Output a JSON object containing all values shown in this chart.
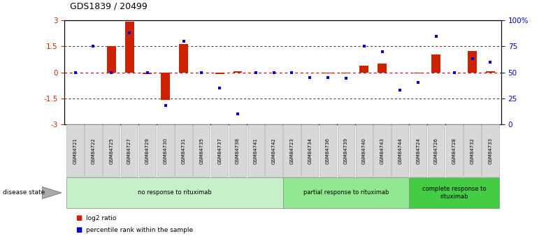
{
  "title": "GDS1839 / 20499",
  "samples": [
    "GSM84721",
    "GSM84722",
    "GSM84725",
    "GSM84727",
    "GSM84729",
    "GSM84730",
    "GSM84731",
    "GSM84735",
    "GSM84737",
    "GSM84738",
    "GSM84741",
    "GSM84742",
    "GSM84723",
    "GSM84734",
    "GSM84736",
    "GSM84739",
    "GSM84740",
    "GSM84743",
    "GSM84744",
    "GSM84724",
    "GSM84726",
    "GSM84728",
    "GSM84732",
    "GSM84733"
  ],
  "log2_ratio": [
    0.0,
    0.0,
    1.52,
    2.92,
    -0.12,
    -1.58,
    1.62,
    0.0,
    -0.12,
    0.05,
    0.0,
    0.0,
    0.0,
    0.0,
    -0.08,
    -0.08,
    0.38,
    0.5,
    0.0,
    -0.05,
    1.05,
    0.0,
    1.22,
    0.05
  ],
  "percentile": [
    50,
    75,
    50,
    88,
    50,
    18,
    80,
    50,
    35,
    10,
    50,
    50,
    50,
    45,
    45,
    44,
    75,
    70,
    33,
    40,
    85,
    50,
    63,
    60
  ],
  "groups": [
    {
      "label": "no response to rituximab",
      "start": 0,
      "end": 12,
      "color": "#c8f0c8"
    },
    {
      "label": "partial response to rituximab",
      "start": 12,
      "end": 19,
      "color": "#90e890"
    },
    {
      "label": "complete response to\nrituximab",
      "start": 19,
      "end": 24,
      "color": "#44cc44"
    }
  ],
  "ylim_left": [
    -3,
    3
  ],
  "ylim_right": [
    0,
    100
  ],
  "yticks_left": [
    -3,
    -1.5,
    0,
    1.5,
    3
  ],
  "ytick_labels_left": [
    "-3",
    "-1.5",
    "0",
    "1.5",
    "3"
  ],
  "yticks_right": [
    0,
    25,
    50,
    75,
    100
  ],
  "ytick_labels_right": [
    "0",
    "25",
    "50",
    "75",
    "100%"
  ],
  "bar_color": "#cc2200",
  "dot_color": "#0000cc",
  "bg_color": "#ffffff",
  "hline_color": "#cc0000",
  "dotted_color": "#333333",
  "sample_box_color": "#d8d8d8",
  "sample_box_edge": "#aaaaaa",
  "label_log2": "log2 ratio",
  "label_pct": "percentile rank within the sample",
  "bar_width": 0.5
}
